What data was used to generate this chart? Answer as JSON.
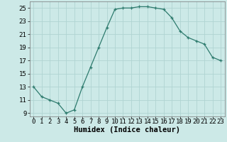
{
  "x": [
    0,
    1,
    2,
    3,
    4,
    5,
    6,
    7,
    8,
    9,
    10,
    11,
    12,
    13,
    14,
    15,
    16,
    17,
    18,
    19,
    20,
    21,
    22,
    23
  ],
  "y": [
    13,
    11.5,
    11,
    10.5,
    9,
    9.5,
    13,
    16,
    19,
    22,
    24.8,
    25,
    25,
    25.2,
    25.2,
    25,
    24.8,
    23.5,
    21.5,
    20.5,
    20,
    19.5,
    17.5,
    17
  ],
  "line_color": "#2e7b6e",
  "marker": "+",
  "marker_size": 3,
  "bg_color": "#cce9e7",
  "grid_color": "#b0d4d2",
  "xlabel": "Humidex (Indice chaleur)",
  "xlim": [
    -0.5,
    23.5
  ],
  "ylim": [
    8.5,
    26
  ],
  "yticks": [
    9,
    11,
    13,
    15,
    17,
    19,
    21,
    23,
    25
  ],
  "xticks": [
    0,
    1,
    2,
    3,
    4,
    5,
    6,
    7,
    8,
    9,
    10,
    11,
    12,
    13,
    14,
    15,
    16,
    17,
    18,
    19,
    20,
    21,
    22,
    23
  ],
  "xlabel_fontsize": 7.5,
  "tick_fontsize": 6.5,
  "line_width": 0.9,
  "marker_edge_width": 0.9
}
